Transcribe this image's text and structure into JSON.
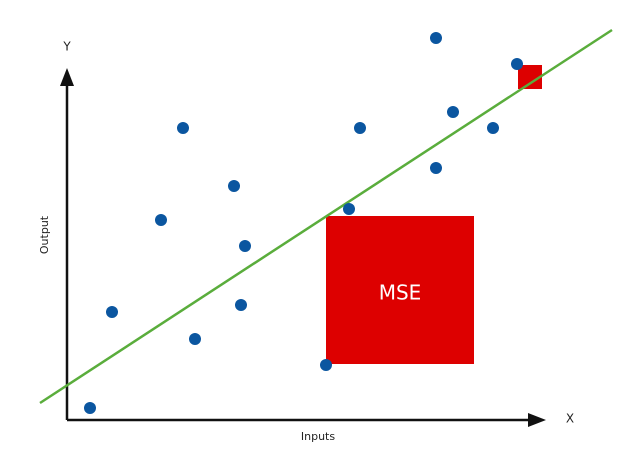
{
  "axes": {
    "y_letter": "Y",
    "x_letter": "X",
    "y_title": "Output",
    "x_title": "Inputs"
  },
  "error_box": {
    "label": "MSE"
  }
}
